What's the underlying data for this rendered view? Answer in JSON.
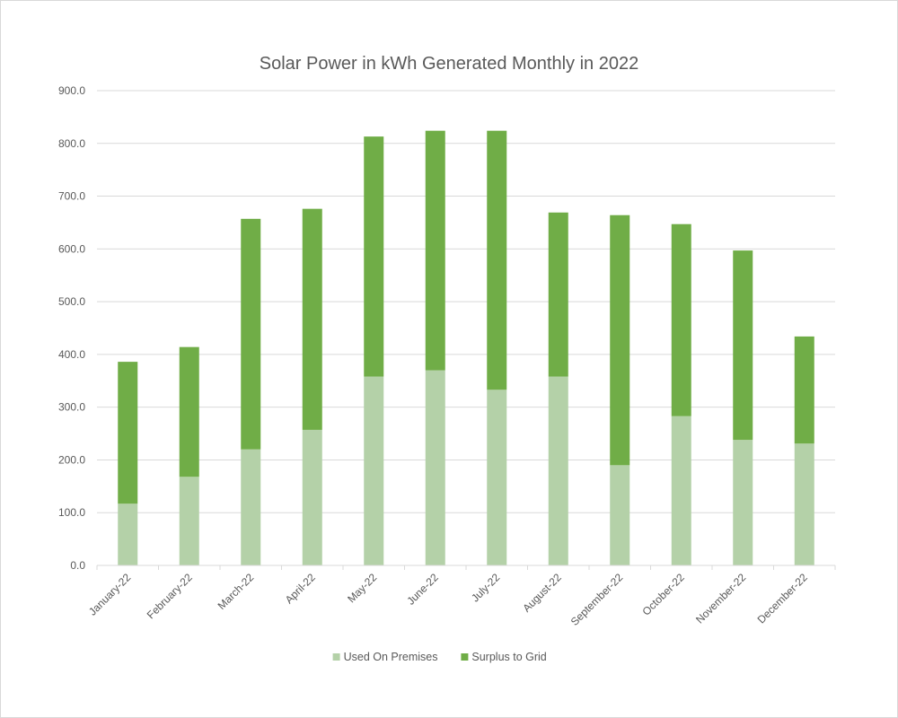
{
  "chart_data": {
    "type": "bar",
    "stacked": true,
    "title": "Solar Power in kWh Generated Monthly in 2022",
    "xlabel": "",
    "ylabel": "",
    "ylim": [
      0,
      900
    ],
    "yticks": [
      "0.0",
      "100.0",
      "200.0",
      "300.0",
      "400.0",
      "500.0",
      "600.0",
      "700.0",
      "800.0",
      "900.0"
    ],
    "grid": true,
    "legend_position": "bottom",
    "categories": [
      "January-22",
      "February-22",
      "March-22",
      "April-22",
      "May-22",
      "June-22",
      "July-22",
      "August-22",
      "September-22",
      "October-22",
      "November-22",
      "December-22"
    ],
    "series": [
      {
        "name": "Used On Premises",
        "color": "#b4d1a8",
        "values": [
          117,
          168,
          220,
          257,
          358,
          370,
          333,
          358,
          190,
          283,
          238,
          231
        ]
      },
      {
        "name": "Surplus to Grid",
        "color": "#70ad47",
        "values": [
          269,
          246,
          437,
          419,
          455,
          454,
          491,
          311,
          474,
          364,
          359,
          203
        ]
      }
    ]
  }
}
